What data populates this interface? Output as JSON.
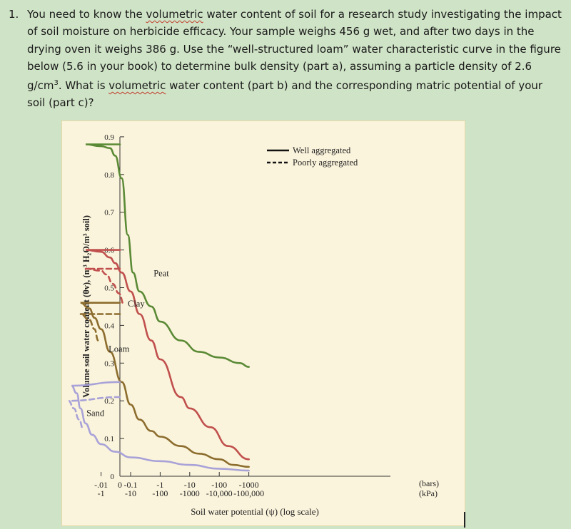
{
  "question": {
    "number": "1.",
    "text_parts": [
      "You need to know the ",
      "volumetric",
      " water content of soil for a research study investigating the impact of soil moisture on herbicide efficacy. Your sample weighs 456 g wet, and after two days in the drying oven it weighs 386 g. Use the “well-structured loam” water characteristic curve in the figure below (5.6 in your book) to determine bulk density (part a), assuming a particle density of 2.6 g/cm",
      "3",
      ". What is ",
      "volumetric",
      " water content (part b) and the corresponding matric potential of your soil (part c)?"
    ]
  },
  "chart_data": {
    "type": "line",
    "ylabel": "Volume soil water content (θv), (m³ H₂O/m³ soil)",
    "xlabel": "Soil water potential (ψ) (log scale)",
    "y_ticks": [
      "0",
      "0.1",
      "0.2",
      "0.3",
      "0.4",
      "0.5",
      "0.6",
      "0.7",
      "0.8",
      "0.9"
    ],
    "ylim": [
      0,
      0.9
    ],
    "x_ticks_bars": [
      "0",
      "-.01",
      "-0.1",
      "-1",
      "-10",
      "-100",
      "-1000"
    ],
    "x_ticks_kpa": [
      "-1",
      "-10",
      "-100",
      "-1000",
      "-10,000",
      "-100,000"
    ],
    "x_unit_bars": "(bars)",
    "x_unit_kpa": "(kPa)",
    "x_scale": "log",
    "legend": {
      "position": "top-right",
      "entries": [
        {
          "label": "Well aggregated",
          "style": "solid"
        },
        {
          "label": "Poorly aggregated",
          "style": "dashed"
        }
      ]
    },
    "series": [
      {
        "name": "Peat",
        "style": "solid",
        "color": "#5a8a35",
        "points": [
          [
            0,
            0.88
          ],
          [
            0.003,
            0.88
          ],
          [
            0.01,
            0.875
          ],
          [
            0.02,
            0.87
          ],
          [
            0.03,
            0.85
          ],
          [
            0.05,
            0.79
          ],
          [
            0.08,
            0.64
          ],
          [
            0.12,
            0.54
          ],
          [
            0.2,
            0.49
          ],
          [
            0.5,
            0.45
          ],
          [
            1,
            0.41
          ],
          [
            5,
            0.36
          ],
          [
            20,
            0.33
          ],
          [
            100,
            0.315
          ],
          [
            500,
            0.3
          ],
          [
            1000,
            0.29
          ]
        ]
      },
      {
        "name": "Clay",
        "style": "solid",
        "color": "#c0504d",
        "points": [
          [
            0,
            0.6
          ],
          [
            0.003,
            0.6
          ],
          [
            0.01,
            0.595
          ],
          [
            0.02,
            0.58
          ],
          [
            0.03,
            0.565
          ],
          [
            0.05,
            0.54
          ],
          [
            0.1,
            0.49
          ],
          [
            0.2,
            0.43
          ],
          [
            0.5,
            0.36
          ],
          [
            1,
            0.31
          ],
          [
            5,
            0.21
          ],
          [
            10,
            0.18
          ],
          [
            50,
            0.13
          ],
          [
            200,
            0.08
          ],
          [
            1000,
            0.045
          ]
        ]
      },
      {
        "name": "Clay",
        "style": "dashed",
        "color": "#c0504d",
        "points": [
          [
            0,
            0.55
          ],
          [
            0.003,
            0.55
          ],
          [
            0.01,
            0.545
          ],
          [
            0.015,
            0.535
          ],
          [
            0.025,
            0.51
          ],
          [
            0.04,
            0.485
          ],
          [
            0.06,
            0.455
          ]
        ]
      },
      {
        "name": "Loam",
        "style": "solid",
        "color": "#8c6d2e",
        "points": [
          [
            0,
            0.46
          ],
          [
            0.002,
            0.46
          ],
          [
            0.004,
            0.445
          ],
          [
            0.006,
            0.42
          ],
          [
            0.01,
            0.39
          ],
          [
            0.02,
            0.33
          ],
          [
            0.05,
            0.25
          ],
          [
            0.1,
            0.19
          ],
          [
            0.2,
            0.15
          ],
          [
            0.5,
            0.12
          ],
          [
            1,
            0.105
          ],
          [
            5,
            0.08
          ],
          [
            20,
            0.06
          ],
          [
            100,
            0.045
          ],
          [
            300,
            0.03
          ],
          [
            1000,
            0.025
          ]
        ]
      },
      {
        "name": "Loam",
        "style": "dashed",
        "color": "#8c6d2e",
        "points": [
          [
            0,
            0.43
          ],
          [
            0.002,
            0.43
          ],
          [
            0.004,
            0.415
          ],
          [
            0.006,
            0.39
          ],
          [
            0.008,
            0.36
          ]
        ]
      },
      {
        "name": "Sand",
        "style": "solid",
        "color": "#a8a2d8",
        "points": [
          [
            0,
            0.25
          ],
          [
            0.001,
            0.24
          ],
          [
            0.0015,
            0.22
          ],
          [
            0.002,
            0.18
          ],
          [
            0.003,
            0.14
          ],
          [
            0.005,
            0.11
          ],
          [
            0.01,
            0.085
          ],
          [
            0.03,
            0.065
          ],
          [
            0.1,
            0.05
          ],
          [
            1,
            0.04
          ],
          [
            10,
            0.03
          ],
          [
            100,
            0.02
          ],
          [
            1000,
            0.015
          ]
        ]
      },
      {
        "name": "Sand",
        "style": "dashed",
        "color": "#a8a2d8",
        "points": [
          [
            0,
            0.21
          ],
          [
            0.0008,
            0.2
          ],
          [
            0.0012,
            0.18
          ],
          [
            0.0018,
            0.15
          ],
          [
            0.0025,
            0.125
          ]
        ]
      }
    ],
    "labels": [
      {
        "text": "Peat",
        "x": 0.6,
        "y": 0.53
      },
      {
        "text": "Clay",
        "x": 0.08,
        "y": 0.45
      },
      {
        "text": "Loam",
        "x": 0.018,
        "y": 0.33
      },
      {
        "text": "Sand",
        "x": 0.0032,
        "y": 0.16
      }
    ]
  }
}
